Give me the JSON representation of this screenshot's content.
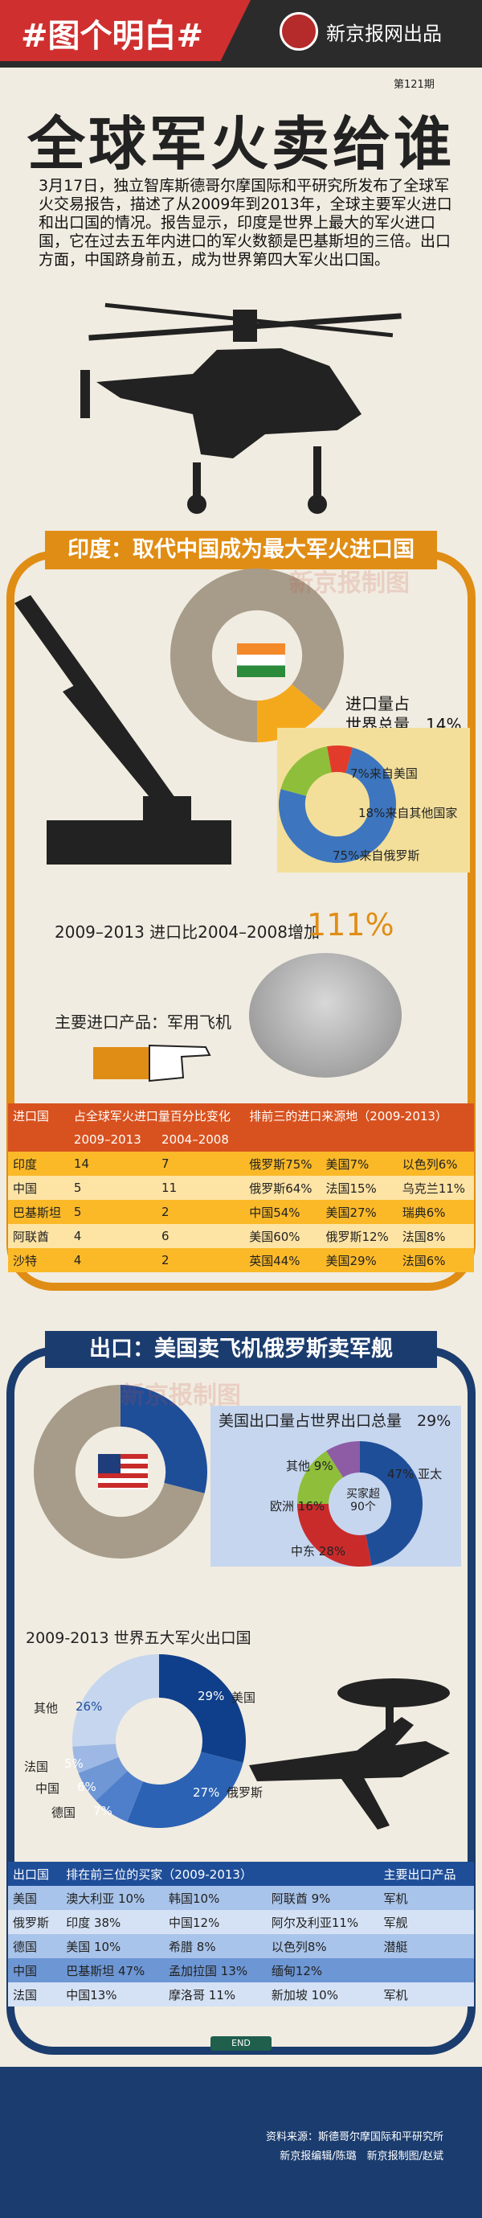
{
  "header": {
    "tag": "#图个明白#",
    "brand": "新京报网出品",
    "issue": "第121期"
  },
  "title": "全球军火卖给谁",
  "intro": "3月17日，独立智库斯德哥尔摩国际和平研究所发布了全球军火交易报告，描述了从2009年到2013年，全球主要军火进口和出口国的情况。报告显示，印度是世界上最大的军火进口国，它在过去五年内进口的军火数额是巴基斯坦的三倍。出口方面，中国跻身前五，成为世界第四大军火出口国。",
  "watermark": "新京报制图",
  "india": {
    "heading": "印度：取代中国成为最大军火进口国",
    "share_label_1": "进口量占",
    "share_label_2": "世界总量",
    "share_value": "14%",
    "growth_label": "2009–2013 进口比2004–2008增加",
    "growth_value": "111%",
    "product_label": "主要进口产品：军用飞机"
  },
  "export": {
    "heading": "出口：美国卖飞机俄罗斯卖军舰",
    "us_share_label": "美国出口量占世界出口总量",
    "us_share_value": "29%",
    "buyers_center": "买家超90个",
    "top5_title": "2009-2013 世界五大军火出口国"
  },
  "import_table": {
    "headers": [
      "进口国",
      "占全球军火进口量百分比变化",
      "排前三的进口来源地（2009-2013）"
    ],
    "subheaders": [
      "2009–2013",
      "2004–2008"
    ],
    "rows": [
      {
        "country": "印度",
        "p1": "14",
        "p2": "7",
        "s1": "俄罗斯75%",
        "s2": "美国7%",
        "s3": "以色列6%"
      },
      {
        "country": "中国",
        "p1": "5",
        "p2": "11",
        "s1": "俄罗斯64%",
        "s2": "法国15%",
        "s3": "乌克兰11%"
      },
      {
        "country": "巴基斯坦",
        "p1": "5",
        "p2": "2",
        "s1": "中国54%",
        "s2": "美国27%",
        "s3": "瑞典6%"
      },
      {
        "country": "阿联酋",
        "p1": "4",
        "p2": "6",
        "s1": "美国60%",
        "s2": "俄罗斯12%",
        "s3": "法国8%"
      },
      {
        "country": "沙特",
        "p1": "4",
        "p2": "2",
        "s1": "英国44%",
        "s2": "美国29%",
        "s3": "法国6%"
      }
    ]
  },
  "export_table": {
    "headers": [
      "出口国",
      "排在前三位的买家（2009-2013）",
      "主要出口产品"
    ],
    "rows": [
      {
        "country": "美国",
        "b1": "澳大利亚 10%",
        "b2": "韩国10%",
        "b3": "阿联酋 9%",
        "product": "军机"
      },
      {
        "country": "俄罗斯",
        "b1": "印度 38%",
        "b2": "中国12%",
        "b3": "阿尔及利亚11%",
        "product": "军舰"
      },
      {
        "country": "德国",
        "b1": "美国 10%",
        "b2": "希腊 8%",
        "b3": "以色列8%",
        "product": "潜艇"
      },
      {
        "country": "中国",
        "b1": "巴基斯坦 47%",
        "b2": "孟加拉国 13%",
        "b3": "缅甸12%",
        "product": ""
      },
      {
        "country": "法国",
        "b1": "中国13%",
        "b2": "摩洛哥 11%",
        "b3": "新加坡 10%",
        "product": "军机"
      }
    ]
  },
  "footer": {
    "end": "END",
    "source": "资料来源：斯德哥尔摩国际和平研究所",
    "credit": "新京报编辑/陈璐　新京报制图/赵斌"
  },
  "chart_data": [
    {
      "type": "pie",
      "title": "",
      "categories": [
        "印度",
        "其他"
      ],
      "values": [
        14,
        86
      ],
      "colors": [
        "#f4a91d",
        "#a79c8a"
      ]
    },
    {
      "type": "pie",
      "title": "",
      "categories": [
        "来自俄罗斯",
        "来自其他国家",
        "来自美国"
      ],
      "values": [
        75,
        18,
        7
      ],
      "colors": [
        "#3d76bf",
        "#8fbf3a",
        "#e23b2b"
      ]
    },
    {
      "type": "pie",
      "title": "",
      "categories": [
        "美国",
        "其他"
      ],
      "values": [
        29,
        71
      ],
      "colors": [
        "#1f4e99",
        "#a79c8a"
      ]
    },
    {
      "type": "pie",
      "title": "",
      "categories": [
        "亚太",
        "中东",
        "欧洲",
        "其他"
      ],
      "values": [
        47,
        28,
        16,
        9
      ],
      "colors": [
        "#1f4e99",
        "#c92b2b",
        "#8fbf3a",
        "#8d5ca5"
      ]
    },
    {
      "type": "pie",
      "title": "2009-2013 世界五大军火出口国",
      "categories": [
        "美国",
        "俄罗斯",
        "德国",
        "中国",
        "法国",
        "其他"
      ],
      "values": [
        29,
        27,
        7,
        6,
        5,
        26
      ],
      "colors": [
        "#0f3f8a",
        "#2b62b3",
        "#4f7fcb",
        "#6f96d5",
        "#9db8e4",
        "#c6d6ef"
      ]
    }
  ]
}
